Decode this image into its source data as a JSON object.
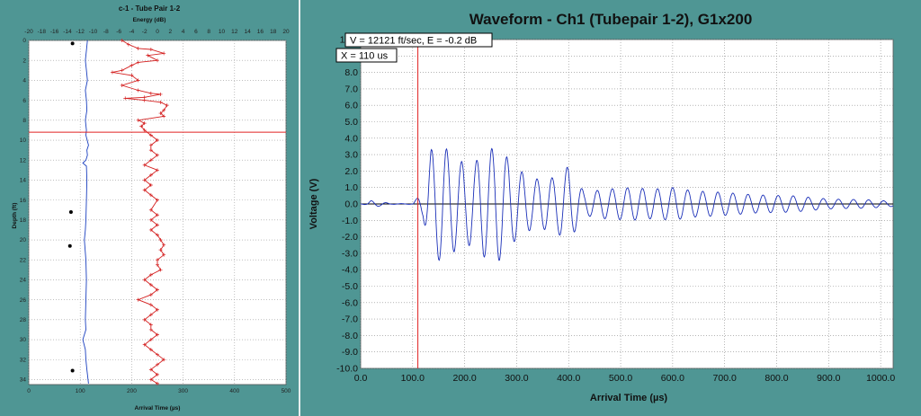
{
  "left_chart": {
    "title": "c-1 - Tube Pair 1-2",
    "top_axis_label": "Energy (dB)",
    "bottom_axis_label": "Arrival Time (µs)",
    "y_axis_label": "Depth (ft)",
    "marker_depth": 9.2
  },
  "right_chart": {
    "title": "Waveform - Ch1 (Tubepair 1-2), G1x200",
    "xlabel": "Arrival Time (µs)",
    "ylabel": "Voltage (V)",
    "info_velocity": "V = 12121 ft/sec, E = -0.2 dB",
    "info_x": "X = 110 us",
    "cursor_x": 110
  },
  "colors": {
    "panel_bg": "#4f9694",
    "arrival_line": "#1a3fbf",
    "energy_line": "#d42020",
    "cursor": "#e02020",
    "waveform": "#1a2fb8"
  },
  "chart_data": [
    {
      "type": "line",
      "title": "c-1 - Tube Pair 1-2",
      "xlabel": "Arrival Time (µs)",
      "ylabel": "Depth (ft)",
      "x2label": "Energy (dB)",
      "xlim": [
        0,
        500
      ],
      "x2lim": [
        -20,
        20
      ],
      "ylim": [
        0,
        34.5
      ],
      "y_inverted": true,
      "grid": true,
      "xticks": [
        0,
        100,
        200,
        300,
        400,
        500
      ],
      "x2ticks": [
        -20,
        -18,
        -16,
        -14,
        -12,
        -10,
        -8,
        -6,
        -4,
        -2,
        0,
        2,
        4,
        6,
        8,
        10,
        12,
        14,
        16,
        18,
        20
      ],
      "yticks": [
        0,
        2,
        4,
        6,
        8,
        10,
        12,
        14,
        16,
        18,
        20,
        22,
        24,
        26,
        28,
        30,
        32,
        34
      ],
      "series": [
        {
          "axis": "arrival",
          "points": [
            [
              114,
              0
            ],
            [
              112,
              1
            ],
            [
              110,
              2
            ],
            [
              112,
              3
            ],
            [
              114,
              4
            ],
            [
              110,
              5
            ],
            [
              112,
              6
            ],
            [
              113,
              7
            ],
            [
              110,
              8
            ],
            [
              112,
              9
            ],
            [
              111,
              9.5
            ],
            [
              116,
              10.5
            ],
            [
              113,
              11
            ],
            [
              114,
              11.5
            ],
            [
              111,
              12
            ],
            [
              105,
              12.3
            ],
            [
              112,
              12.6
            ],
            [
              113,
              14
            ],
            [
              112,
              16
            ],
            [
              111,
              18
            ],
            [
              110,
              19
            ],
            [
              108,
              20
            ],
            [
              111,
              22
            ],
            [
              112,
              24
            ],
            [
              111,
              26
            ],
            [
              110,
              28
            ],
            [
              111,
              29
            ],
            [
              105,
              30
            ],
            [
              110,
              31
            ],
            [
              111,
              32
            ],
            [
              113,
              33
            ],
            [
              116,
              34.4
            ]
          ]
        },
        {
          "axis": "energy",
          "points": [
            [
              -5.5,
              0
            ],
            [
              -4.5,
              0.4
            ],
            [
              -3,
              0.8
            ],
            [
              -1,
              0.9
            ],
            [
              1,
              1.3
            ],
            [
              -1.5,
              1.5
            ],
            [
              0,
              2
            ],
            [
              -3,
              2.2
            ],
            [
              -4,
              2.5
            ],
            [
              -5.5,
              3
            ],
            [
              -7,
              3.2
            ],
            [
              -4,
              3.5
            ],
            [
              -3,
              4
            ],
            [
              -5.5,
              4.5
            ],
            [
              -3,
              5
            ],
            [
              -1,
              5.3
            ],
            [
              0.5,
              5.4
            ],
            [
              -2,
              5.7
            ],
            [
              -5,
              5.8
            ],
            [
              -2,
              6
            ],
            [
              0.5,
              6.2
            ],
            [
              1.5,
              6.5
            ],
            [
              1,
              7
            ],
            [
              0.5,
              7.3
            ],
            [
              1,
              7.6
            ],
            [
              -3,
              8
            ],
            [
              -2,
              8.3
            ],
            [
              -2.5,
              8.6
            ],
            [
              -2,
              9
            ],
            [
              -1,
              9.5
            ],
            [
              0,
              10
            ],
            [
              -1,
              10.5
            ],
            [
              -1,
              11
            ],
            [
              0,
              11.5
            ],
            [
              -1,
              12
            ],
            [
              -2,
              12.5
            ],
            [
              0,
              13
            ],
            [
              -1,
              13.5
            ],
            [
              -2,
              14
            ],
            [
              -1,
              14.5
            ],
            [
              -2,
              15
            ],
            [
              -1,
              15.5
            ],
            [
              0,
              16
            ],
            [
              -1,
              17
            ],
            [
              0,
              17.5
            ],
            [
              -1,
              18
            ],
            [
              0,
              18.5
            ],
            [
              -1,
              19
            ],
            [
              0,
              19.5
            ],
            [
              0.5,
              20
            ],
            [
              1,
              20.5
            ],
            [
              0.5,
              21
            ],
            [
              1,
              21.5
            ],
            [
              0,
              22
            ],
            [
              0,
              22.5
            ],
            [
              0.5,
              23
            ],
            [
              -1,
              23.5
            ],
            [
              -2,
              24
            ],
            [
              -1,
              24.5
            ],
            [
              0,
              25
            ],
            [
              -1,
              25.5
            ],
            [
              -3,
              26
            ],
            [
              -1,
              26.5
            ],
            [
              0,
              27
            ],
            [
              -1,
              27.5
            ],
            [
              -2,
              28
            ],
            [
              -1,
              28.5
            ],
            [
              -1,
              29
            ],
            [
              0,
              29.5
            ],
            [
              -1,
              30
            ],
            [
              -2,
              30.5
            ],
            [
              -1,
              31
            ],
            [
              0,
              31.5
            ],
            [
              1,
              32
            ],
            [
              0,
              32.5
            ],
            [
              -1,
              33
            ],
            [
              0,
              33.5
            ],
            [
              -1,
              34
            ],
            [
              0,
              34.4
            ]
          ]
        },
        {
          "axis": "arrival",
          "style": "markers",
          "points": [
            [
              85,
              0.3
            ],
            [
              82,
              17.2
            ],
            [
              80,
              20.6
            ],
            [
              85,
              33.1
            ]
          ]
        }
      ]
    },
    {
      "type": "line",
      "title": "Waveform - Ch1 (Tubepair 1-2), G1x200",
      "xlabel": "Arrival Time (µs)",
      "ylabel": "Voltage (V)",
      "xlim": [
        0,
        1024
      ],
      "ylim": [
        -10,
        10
      ],
      "grid": true,
      "xticks": [
        0,
        100,
        200,
        300,
        400,
        500,
        600,
        700,
        800,
        900,
        1000
      ],
      "yticks": [
        -10,
        -9,
        -8,
        -7,
        -6,
        -5,
        -4,
        -3,
        -2,
        -1,
        0,
        1,
        2,
        3,
        4,
        5,
        6,
        7,
        8,
        9,
        10
      ],
      "series": [
        {
          "name": "Ch1",
          "sample_step_us": 1,
          "envelope": [
            [
              0,
              0
            ],
            [
              10,
              0.05
            ],
            [
              20,
              0.2
            ],
            [
              40,
              0.12
            ],
            [
              60,
              0.02
            ],
            [
              100,
              0.02
            ],
            [
              120,
              0.8
            ],
            [
              135,
              3.3
            ],
            [
              160,
              3.5
            ],
            [
              190,
              2.6
            ],
            [
              220,
              2.5
            ],
            [
              235,
              3.2
            ],
            [
              265,
              3.5
            ],
            [
              295,
              2.3
            ],
            [
              330,
              1.5
            ],
            [
              370,
              1.6
            ],
            [
              400,
              2.3
            ],
            [
              430,
              0.7
            ],
            [
              470,
              0.9
            ],
            [
              520,
              1.0
            ],
            [
              560,
              0.9
            ],
            [
              600,
              1.0
            ],
            [
              640,
              0.8
            ],
            [
              700,
              0.7
            ],
            [
              760,
              0.55
            ],
            [
              830,
              0.5
            ],
            [
              900,
              0.3
            ],
            [
              980,
              0.25
            ],
            [
              1024,
              0.15
            ]
          ],
          "frequency_cycles_per_us": 0.0345
        }
      ]
    }
  ]
}
